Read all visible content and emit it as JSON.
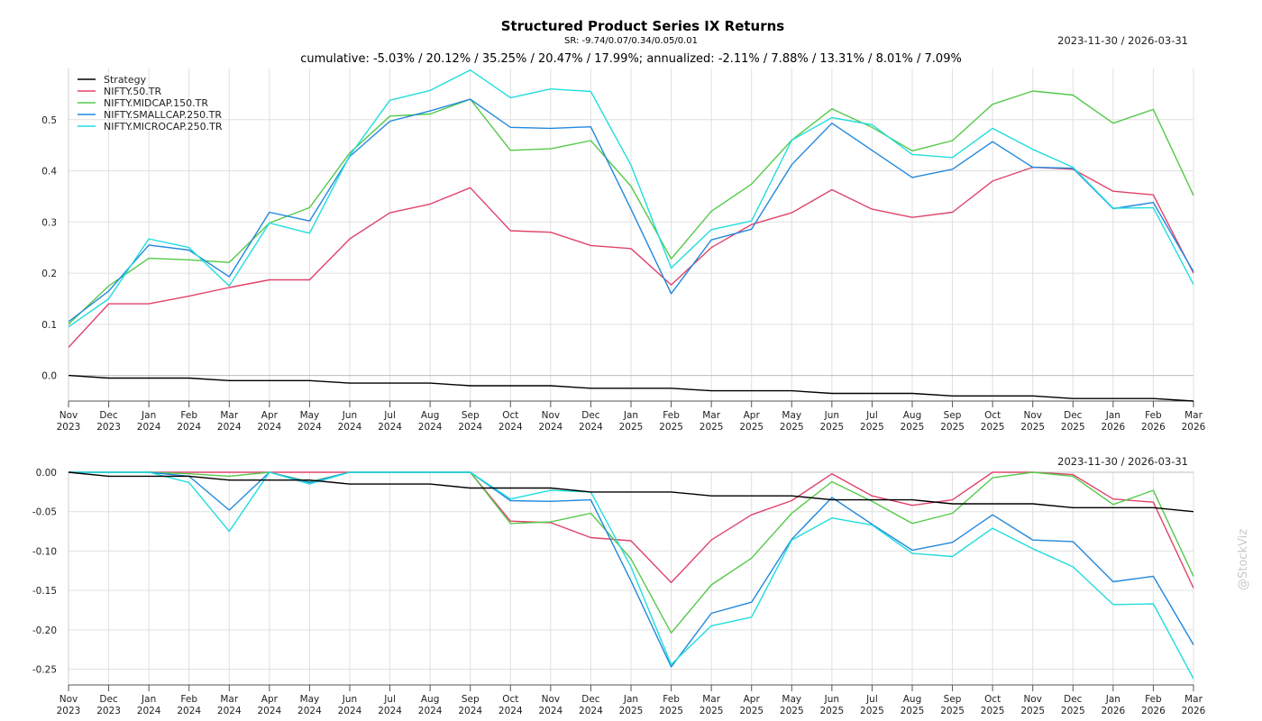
{
  "header": {
    "title": "Structured Product Series IX Returns",
    "sr": "SR: -9.74/0.07/0.34/0.05/0.01",
    "cumulative": "cumulative: -5.03% / 20.12% / 35.25% / 20.47% / 17.99%; annualized: -2.11% / 7.88% / 13.31% / 8.01% / 7.09%",
    "date_range": "2023-11-30 / 2026-03-31"
  },
  "watermark": "@StockViz",
  "colors": {
    "Strategy": "#000000",
    "NIFTY.50.TR": "#e0436a",
    "NIFTY.MIDCAP.150.TR": "#55c94a",
    "NIFTY.SMALLCAP.250.TR": "#2188dd",
    "NIFTY.MICROCAP.250.TR": "#22dddd",
    "grid": "#e0e0e0"
  },
  "chart_data": [
    {
      "type": "line",
      "title": "Structured Product Series IX Returns",
      "date_range": "2023-11-30 / 2026-03-31",
      "x": [
        "Nov 2023",
        "Dec 2023",
        "Jan 2024",
        "Feb 2024",
        "Mar 2024",
        "Apr 2024",
        "May 2024",
        "Jun 2024",
        "Jul 2024",
        "Aug 2024",
        "Sep 2024",
        "Oct 2024",
        "Nov 2024",
        "Dec 2024",
        "Jan 2025",
        "Feb 2025",
        "Mar 2025",
        "Apr 2025",
        "May 2025",
        "Jun 2025",
        "Jul 2025",
        "Aug 2025",
        "Sep 2025",
        "Oct 2025",
        "Nov 2025",
        "Dec 2025",
        "Jan 2026",
        "Feb 2026",
        "Mar 2026"
      ],
      "ylim": [
        -0.05,
        0.6
      ],
      "yticks": [
        "0.0",
        "0.1",
        "0.2",
        "0.3",
        "0.4",
        "0.5"
      ],
      "legend": "top-left",
      "grid": true,
      "series": [
        {
          "name": "Strategy",
          "values": [
            0.0,
            -0.005,
            -0.005,
            -0.005,
            -0.01,
            -0.01,
            -0.01,
            -0.015,
            -0.015,
            -0.015,
            -0.02,
            -0.02,
            -0.02,
            -0.025,
            -0.025,
            -0.025,
            -0.03,
            -0.03,
            -0.03,
            -0.035,
            -0.035,
            -0.035,
            -0.04,
            -0.04,
            -0.04,
            -0.045,
            -0.045,
            -0.045,
            -0.05
          ]
        },
        {
          "name": "NIFTY.50.TR",
          "values": [
            0.055,
            0.14,
            0.14,
            0.155,
            0.172,
            0.187,
            0.187,
            0.267,
            0.318,
            0.335,
            0.367,
            0.283,
            0.28,
            0.254,
            0.248,
            0.177,
            0.25,
            0.295,
            0.318,
            0.363,
            0.325,
            0.309,
            0.319,
            0.38,
            0.407,
            0.403,
            0.36,
            0.353,
            0.2
          ]
        },
        {
          "name": "NIFTY.MIDCAP.150.TR",
          "values": [
            0.1,
            0.175,
            0.229,
            0.226,
            0.221,
            0.298,
            0.328,
            0.435,
            0.507,
            0.511,
            0.54,
            0.44,
            0.443,
            0.459,
            0.37,
            0.228,
            0.321,
            0.374,
            0.46,
            0.521,
            0.485,
            0.439,
            0.459,
            0.53,
            0.556,
            0.548,
            0.493,
            0.52,
            0.352
          ]
        },
        {
          "name": "NIFTY.SMALLCAP.250.TR",
          "values": [
            0.105,
            0.165,
            0.255,
            0.245,
            0.193,
            0.319,
            0.302,
            0.428,
            0.497,
            0.517,
            0.54,
            0.485,
            0.483,
            0.486,
            0.325,
            0.16,
            0.265,
            0.286,
            0.412,
            0.493,
            0.44,
            0.387,
            0.403,
            0.457,
            0.407,
            0.405,
            0.326,
            0.338,
            0.203
          ]
        },
        {
          "name": "NIFTY.MICROCAP.250.TR",
          "values": [
            0.095,
            0.15,
            0.267,
            0.25,
            0.175,
            0.298,
            0.278,
            0.43,
            0.538,
            0.557,
            0.597,
            0.543,
            0.56,
            0.555,
            0.411,
            0.21,
            0.285,
            0.302,
            0.46,
            0.504,
            0.49,
            0.432,
            0.426,
            0.483,
            0.442,
            0.407,
            0.327,
            0.328,
            0.178
          ]
        }
      ]
    },
    {
      "type": "line",
      "title": "",
      "date_range": "2023-11-30 / 2026-03-31",
      "x": [
        "Nov 2023",
        "Dec 2023",
        "Jan 2024",
        "Feb 2024",
        "Mar 2024",
        "Apr 2024",
        "May 2024",
        "Jun 2024",
        "Jul 2024",
        "Aug 2024",
        "Sep 2024",
        "Oct 2024",
        "Nov 2024",
        "Dec 2024",
        "Jan 2025",
        "Feb 2025",
        "Mar 2025",
        "Apr 2025",
        "May 2025",
        "Jun 2025",
        "Jul 2025",
        "Aug 2025",
        "Sep 2025",
        "Oct 2025",
        "Nov 2025",
        "Dec 2025",
        "Jan 2026",
        "Feb 2026",
        "Mar 2026"
      ],
      "ylim": [
        -0.27,
        0.0
      ],
      "yticks": [
        "0.00",
        "-0.05",
        "-0.10",
        "-0.15",
        "-0.20",
        "-0.25"
      ],
      "grid": true,
      "series": [
        {
          "name": "Strategy",
          "values": [
            0.0,
            -0.005,
            -0.005,
            -0.005,
            -0.01,
            -0.01,
            -0.01,
            -0.015,
            -0.015,
            -0.015,
            -0.02,
            -0.02,
            -0.02,
            -0.025,
            -0.025,
            -0.025,
            -0.03,
            -0.03,
            -0.03,
            -0.035,
            -0.035,
            -0.035,
            -0.04,
            -0.04,
            -0.04,
            -0.045,
            -0.045,
            -0.045,
            -0.05
          ]
        },
        {
          "name": "NIFTY.50.TR",
          "values": [
            0.0,
            0.0,
            0.0,
            0.0,
            0.0,
            0.0,
            0.0,
            0.0,
            0.0,
            0.0,
            0.0,
            -0.062,
            -0.064,
            -0.083,
            -0.087,
            -0.14,
            -0.086,
            -0.054,
            -0.036,
            -0.002,
            -0.03,
            -0.042,
            -0.035,
            0.0,
            0.0,
            -0.003,
            -0.034,
            -0.038,
            -0.147
          ]
        },
        {
          "name": "NIFTY.MIDCAP.150.TR",
          "values": [
            0.0,
            0.0,
            0.0,
            -0.002,
            -0.005,
            0.0,
            -0.012,
            0.0,
            0.0,
            0.0,
            0.0,
            -0.065,
            -0.063,
            -0.052,
            -0.11,
            -0.204,
            -0.143,
            -0.109,
            -0.052,
            -0.012,
            -0.037,
            -0.065,
            -0.052,
            -0.007,
            0.0,
            -0.005,
            -0.041,
            -0.023,
            -0.132
          ]
        },
        {
          "name": "NIFTY.SMALLCAP.250.TR",
          "values": [
            0.0,
            0.0,
            0.0,
            -0.005,
            -0.048,
            0.0,
            -0.013,
            0.0,
            0.0,
            0.0,
            0.0,
            -0.036,
            -0.037,
            -0.035,
            -0.138,
            -0.247,
            -0.179,
            -0.165,
            -0.085,
            -0.032,
            -0.066,
            -0.099,
            -0.089,
            -0.054,
            -0.086,
            -0.088,
            -0.139,
            -0.132,
            -0.219
          ]
        },
        {
          "name": "NIFTY.MICROCAP.250.TR",
          "values": [
            0.0,
            0.0,
            0.0,
            -0.013,
            -0.075,
            0.0,
            -0.015,
            0.0,
            0.0,
            0.0,
            0.0,
            -0.034,
            -0.023,
            -0.025,
            -0.12,
            -0.244,
            -0.195,
            -0.184,
            -0.086,
            -0.058,
            -0.067,
            -0.103,
            -0.107,
            -0.071,
            -0.097,
            -0.12,
            -0.168,
            -0.167,
            -0.262
          ]
        }
      ]
    }
  ]
}
